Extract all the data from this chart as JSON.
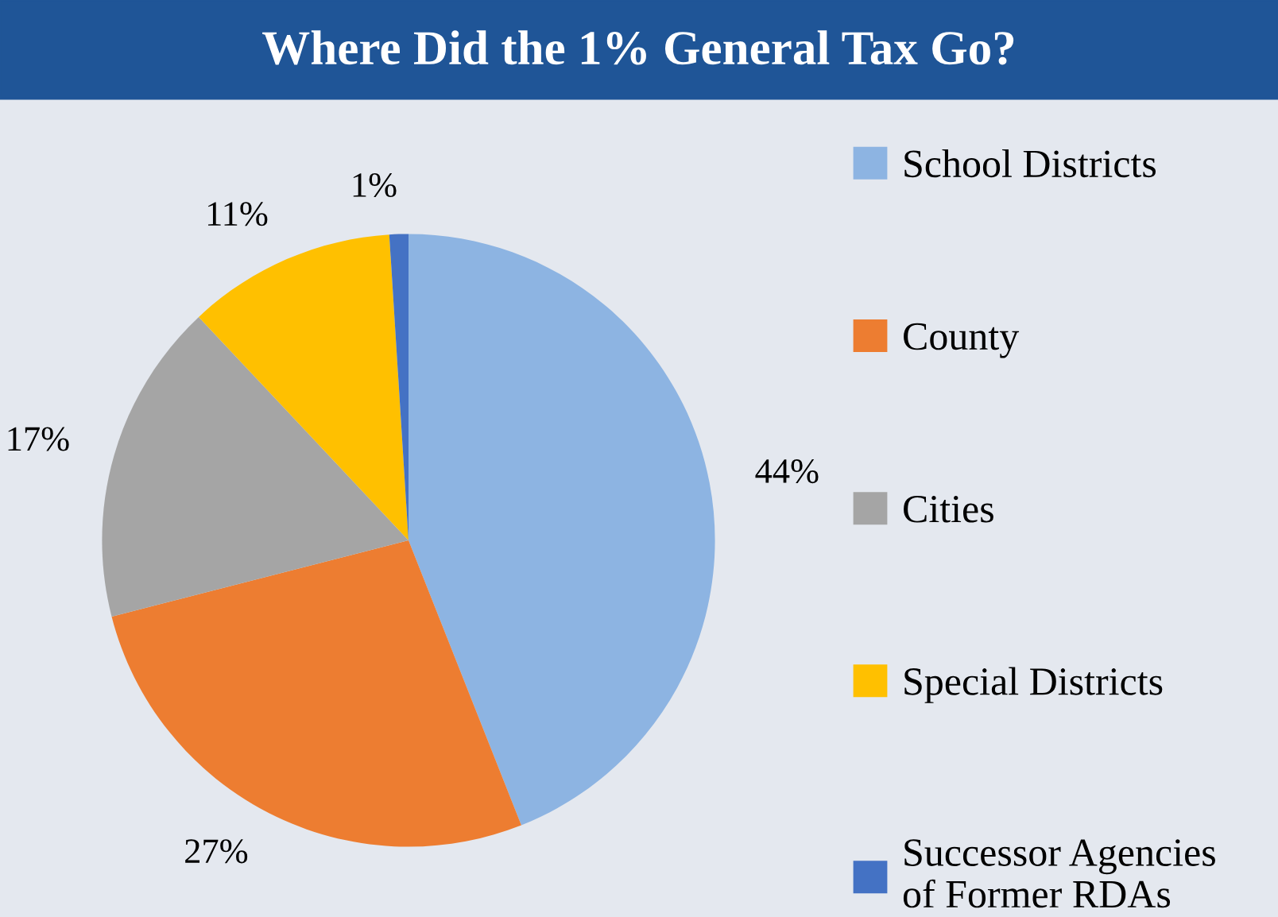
{
  "chart_data": {
    "type": "pie",
    "title": "Where Did the 1% General Tax Go?",
    "categories": [
      "School Districts",
      "County",
      "Cities",
      "Special Districts",
      "Successor Agencies\nof Former RDAs"
    ],
    "values": [
      44,
      27,
      17,
      11,
      1
    ],
    "colors": [
      "#8db4e2",
      "#ed7d31",
      "#a5a5a5",
      "#ffc000",
      "#4472c4"
    ],
    "value_labels": [
      "44%",
      "27%",
      "17%",
      "11%",
      "1%"
    ],
    "legend": "right"
  }
}
